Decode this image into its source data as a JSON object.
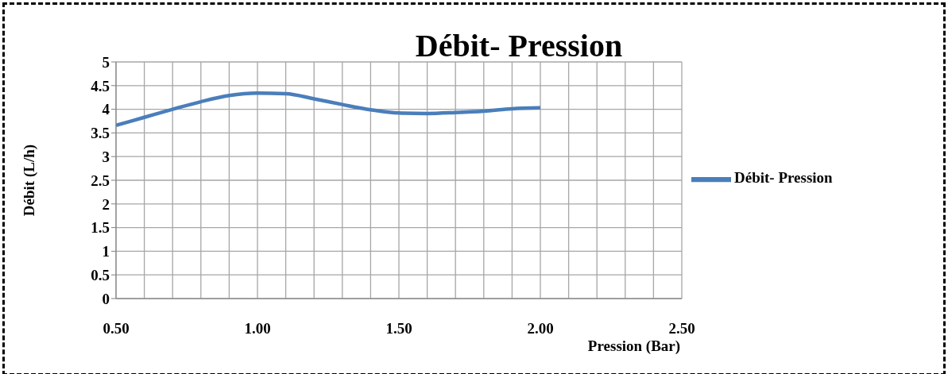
{
  "chart_data": {
    "type": "line",
    "title": "Débit- Pression",
    "xlabel": "Pression (Bar)",
    "ylabel": "Débit (L/h)",
    "x": [
      0.5,
      0.6,
      0.7,
      0.8,
      0.9,
      1.0,
      1.1,
      1.2,
      1.3,
      1.4,
      1.5,
      1.6,
      1.7,
      1.8,
      1.9,
      2.0
    ],
    "series": [
      {
        "name": "Débit- Pression",
        "color": "#4a7ebb",
        "values": [
          3.66,
          3.83,
          4.0,
          4.16,
          4.29,
          4.34,
          4.33,
          4.22,
          4.1,
          3.99,
          3.92,
          3.91,
          3.93,
          3.96,
          4.01,
          4.03
        ]
      }
    ],
    "xlim": [
      0.5,
      2.5
    ],
    "xticks": [
      {
        "value": 0.5,
        "label": "0.50"
      },
      {
        "value": 0.6,
        "label": null
      },
      {
        "value": 0.7,
        "label": null
      },
      {
        "value": 0.8,
        "label": null
      },
      {
        "value": 0.9,
        "label": null
      },
      {
        "value": 1.0,
        "label": "1.00"
      },
      {
        "value": 1.1,
        "label": null
      },
      {
        "value": 1.2,
        "label": null
      },
      {
        "value": 1.3,
        "label": null
      },
      {
        "value": 1.4,
        "label": null
      },
      {
        "value": 1.5,
        "label": "1.50"
      },
      {
        "value": 1.6,
        "label": null
      },
      {
        "value": 1.7,
        "label": null
      },
      {
        "value": 1.8,
        "label": null
      },
      {
        "value": 1.9,
        "label": null
      },
      {
        "value": 2.0,
        "label": "2.00"
      },
      {
        "value": 2.1,
        "label": null
      },
      {
        "value": 2.2,
        "label": null
      },
      {
        "value": 2.3,
        "label": null
      },
      {
        "value": 2.4,
        "label": null
      },
      {
        "value": 2.5,
        "label": "2.50"
      }
    ],
    "ylim": [
      0,
      5
    ],
    "yticks": [
      0,
      0.5,
      1,
      1.5,
      2,
      2.5,
      3,
      3.5,
      4,
      4.5,
      5
    ],
    "grid": true,
    "legend": "right",
    "marker": "none",
    "line_style": "solid"
  }
}
